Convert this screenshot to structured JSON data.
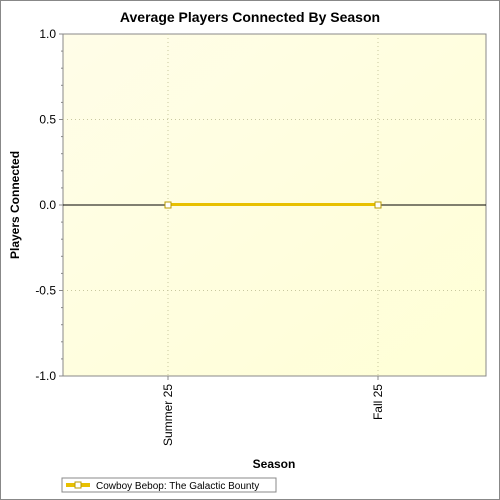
{
  "chart_data": {
    "type": "line",
    "title": "Average Players Connected By Season",
    "xlabel": "Season",
    "ylabel": "Players Connected",
    "categories": [
      "Summer 25",
      "Fall 25"
    ],
    "series": [
      {
        "name": "Cowboy Bebop: The Galactic Bounty",
        "values": [
          0,
          0
        ],
        "color": "#e8c000"
      }
    ],
    "ylim": [
      -1.0,
      1.0
    ],
    "yticks": [
      "1.0",
      "0.5",
      "0.0",
      "-0.5",
      "-1.0"
    ],
    "ytick_values": [
      1.0,
      0.5,
      0.0,
      -0.5,
      -1.0
    ],
    "grid": true,
    "legend_position": "bottom-left",
    "colors": {
      "plot_background_start": "#fffde8",
      "plot_background_end": "#ffffd6",
      "gridline": "#c8c8a0",
      "zero_line": "#000000"
    }
  }
}
